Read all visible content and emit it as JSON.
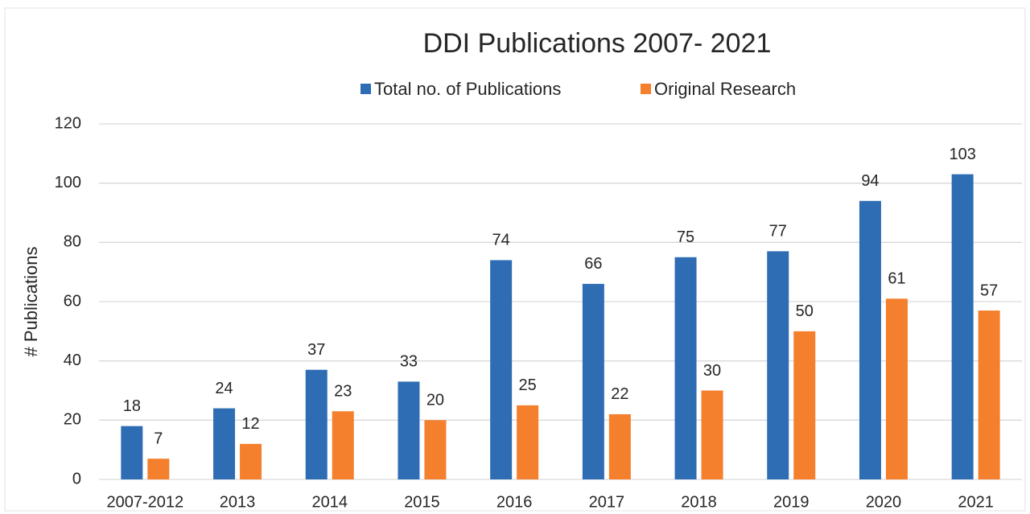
{
  "chart_data": {
    "type": "bar",
    "title": "DDI Publications 2007- 2021",
    "y_label": "# Publications",
    "categories": [
      "2007-2012",
      "2013",
      "2014",
      "2015",
      "2016",
      "2017",
      "2018",
      "2019",
      "2020",
      "2021"
    ],
    "series": [
      {
        "name": "Total no. of Publications",
        "color": "#2e6db4",
        "values": [
          18,
          24,
          37,
          33,
          74,
          66,
          75,
          77,
          94,
          103
        ]
      },
      {
        "name": "Original Research",
        "color": "#f47f2c",
        "values": [
          7,
          12,
          23,
          20,
          25,
          22,
          30,
          50,
          61,
          57
        ]
      }
    ],
    "ylim": [
      0,
      120
    ],
    "yticks": [
      0,
      20,
      40,
      60,
      80,
      100,
      120
    ],
    "grid": true,
    "legend": "top"
  }
}
